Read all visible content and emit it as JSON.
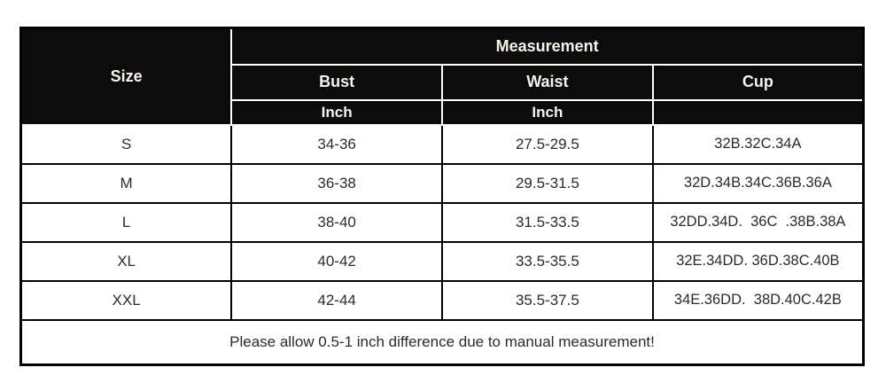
{
  "table": {
    "header": {
      "size_label": "Size",
      "measurement_label": "Measurement",
      "columns": [
        "Bust",
        "Waist",
        "Cup"
      ],
      "units": [
        "Inch",
        "Inch",
        ""
      ]
    },
    "rows": [
      {
        "size": "S",
        "bust": "34-36",
        "waist": "27.5-29.5",
        "cup": "32B.32C.34A"
      },
      {
        "size": "M",
        "bust": "36-38",
        "waist": "29.5-31.5",
        "cup": "32D.34B.34C.36B.36A"
      },
      {
        "size": "L",
        "bust": "38-40",
        "waist": "31.5-33.5",
        "cup": "32DD.34D.  36C  .38B.38A"
      },
      {
        "size": "XL",
        "bust": "40-42",
        "waist": "33.5-35.5",
        "cup": "32E.34DD. 36D.38C.40B"
      },
      {
        "size": "XXL",
        "bust": "42-44",
        "waist": "35.5-37.5",
        "cup": "34E.36DD.  38D.40C.42B"
      }
    ],
    "footer_note": "Please allow 0.5-1 inch difference due to manual measurement!"
  },
  "colors": {
    "header_bg": "#0c0c0c",
    "header_text": "#f7f3ec",
    "body_text": "#2b2b2b",
    "border": "#000000",
    "page_bg": "#ffffff"
  }
}
